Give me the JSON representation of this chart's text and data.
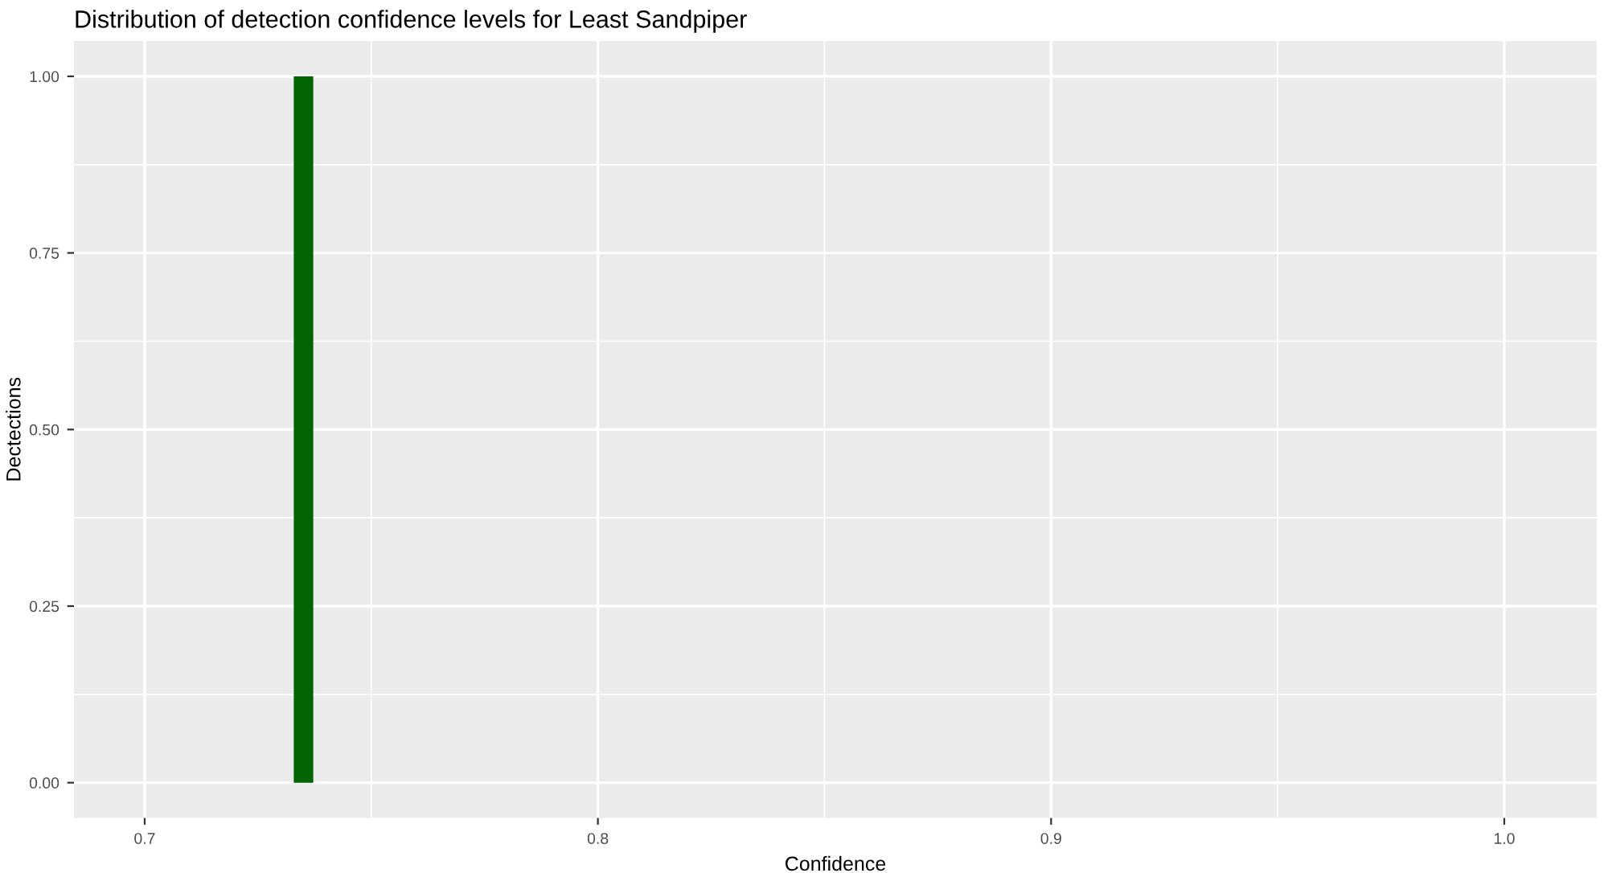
{
  "chart_data": {
    "type": "histogram",
    "title": "Distribution of detection confidence levels for Least Sandpiper",
    "xlabel": "Confidence",
    "ylabel": "Dectections",
    "bins": [
      0.7329,
      0.7372
    ],
    "values": [
      1
    ],
    "color": "#006400",
    "xlim": [
      0.6844,
      1.0204
    ],
    "xticks": [
      0.7,
      0.8,
      0.9,
      {
        "value": 1.0,
        "label": "1.0"
      }
    ],
    "ylim": [
      -0.05,
      1.05
    ],
    "yticks": [
      {
        "value": 0,
        "label": "0.00"
      },
      {
        "value": 0.25,
        "label": "0.25"
      },
      {
        "value": 0.5,
        "label": "0.50"
      },
      {
        "value": 0.75,
        "label": "0.75"
      },
      {
        "value": 1,
        "label": "1.00"
      }
    ],
    "grid": true
  }
}
